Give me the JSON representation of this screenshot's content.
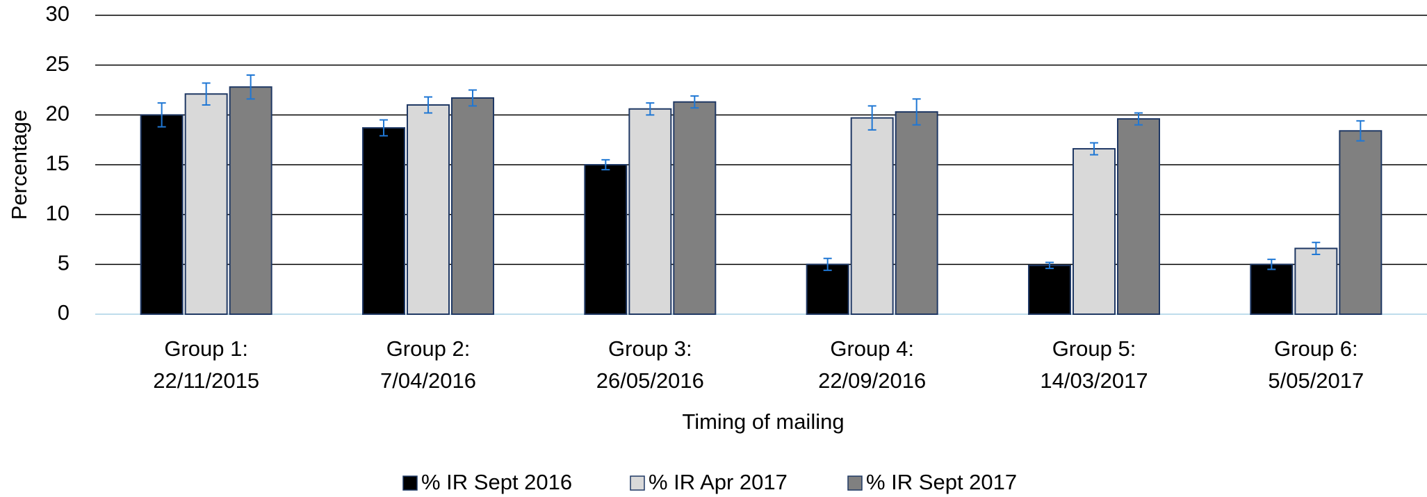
{
  "chart_data": {
    "type": "bar",
    "x_label": "Timing of mailing",
    "y_label": "Percentage",
    "categories": [
      [
        "Group 1:",
        "22/11/2015"
      ],
      [
        "Group 2:",
        "7/04/2016"
      ],
      [
        "Group 3:",
        "26/05/2016"
      ],
      [
        "Group 4:",
        "22/09/2016"
      ],
      [
        "Group 5:",
        "14/03/2017"
      ],
      [
        "Group 6:",
        "5/05/2017"
      ]
    ],
    "series": [
      {
        "name": "% IR Sept 2016",
        "color": "#000000",
        "values": [
          20,
          18.7,
          15,
          5,
          4.9,
          5
        ],
        "errors": [
          1.2,
          0.8,
          0.5,
          0.6,
          0.3,
          0.5
        ]
      },
      {
        "name": "% IR Apr 2017",
        "color": "#d9d9d9",
        "values": [
          22.1,
          21,
          20.6,
          19.7,
          16.6,
          6.6
        ],
        "errors": [
          1.1,
          0.8,
          0.6,
          1.2,
          0.6,
          0.6
        ]
      },
      {
        "name": "% IR Sept 2017",
        "color": "#808080",
        "values": [
          22.8,
          21.7,
          21.3,
          20.3,
          19.6,
          18.4
        ],
        "errors": [
          1.2,
          0.8,
          0.6,
          1.3,
          0.6,
          1.0
        ]
      }
    ],
    "ylim": [
      0,
      30
    ],
    "yticks": [
      0,
      5,
      10,
      15,
      20,
      25,
      30
    ],
    "grid": true,
    "legend": "bottom"
  }
}
